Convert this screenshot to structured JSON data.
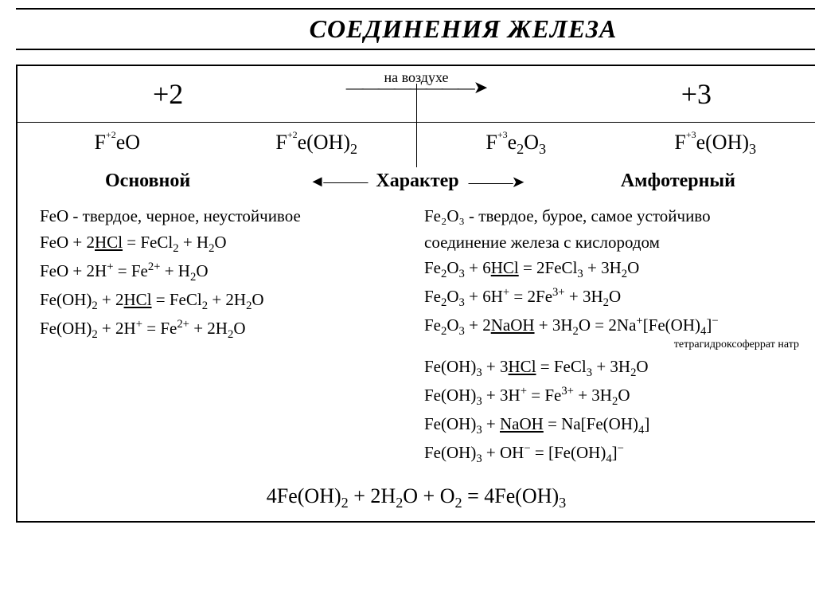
{
  "title": "СОЕДИНЕНИЯ ЖЕЛЕЗА",
  "header": {
    "state_left": "+2",
    "state_right": "+3",
    "air_label": "на воздухе"
  },
  "formulas": {
    "f1": "FeO",
    "c1": "+2",
    "f2": "Fe(OH)",
    "c2": "+2",
    "f3": "Fe",
    "c3": "+3",
    "f4": "Fe(OH)",
    "c4": "+3"
  },
  "character": {
    "left": "Основной",
    "center": "Характер",
    "right": "Амфотерный"
  },
  "left_block": {
    "l1": "FeO - твердое, черное, неустойчивое",
    "note": "тетрагидроксоферрат натр"
  },
  "right_block": {
    "l1": "Fe₂O₃ - твердое, бурое, самое устойчиво",
    "l2": "соединение железа с кислородом"
  },
  "final": "4Fe(OH)₂ + 2H₂O + O₂ = 4Fe(OH)₃",
  "colors": {
    "fg": "#000000",
    "bg": "#ffffff"
  }
}
